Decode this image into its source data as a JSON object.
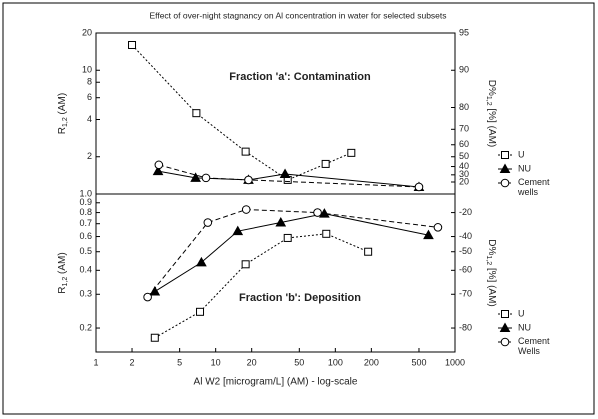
{
  "chart_data": [
    {
      "type": "line",
      "title": "Effect of over-night stagnancy on Al concentration in water for selected subsets",
      "annotation": "Fraction 'a': Contamination",
      "ylabel": {
        "main": "R",
        "sub": "1,2",
        "rest": " (AM)"
      },
      "y2label": {
        "main": "D%",
        "sub": "1,2",
        "rest": " [%] (AM)"
      },
      "xlim": [
        1,
        1000
      ],
      "xlog": true,
      "ylim": [
        1,
        20
      ],
      "ylog": true,
      "yticks": [
        {
          "value": 1,
          "label": "1.0"
        },
        2,
        4,
        6,
        8,
        10,
        20
      ],
      "y2lim": [
        0,
        95
      ],
      "y2ticks": [
        20,
        30,
        40,
        50,
        60,
        70,
        80,
        90,
        95
      ],
      "legend": "right",
      "series": [
        {
          "name": "U",
          "color": "#000000",
          "marker": "square",
          "dash": "dotted",
          "x": [
            2,
            6.9,
            17.8,
            40,
            83,
            136
          ],
          "values": [
            16,
            4.5,
            2.2,
            1.3,
            1.75,
            2.15
          ]
        },
        {
          "name": "NU",
          "color": "#000000",
          "marker": "triangle",
          "dash": "solid",
          "x": [
            3.3,
            6.8,
            18.8,
            38,
            500
          ],
          "values": [
            1.53,
            1.35,
            1.3,
            1.45,
            1.14
          ]
        },
        {
          "name": "Cement wells",
          "color": "#000000",
          "marker": "circle",
          "dash": "dashed",
          "x": [
            3.35,
            8.3,
            18.8,
            500
          ],
          "values": [
            1.72,
            1.35,
            1.3,
            1.14
          ]
        }
      ]
    },
    {
      "type": "line",
      "annotation": "Fraction 'b': Deposition",
      "ylabel": {
        "main": "R",
        "sub": "1,2",
        "rest": " (AM)"
      },
      "y2label": {
        "main": "D%",
        "sub": "1,2",
        "rest": " [%] (AM)"
      },
      "xlabel": "Al W2  [microgram/L] (AM) - log-scale",
      "xlim": [
        1,
        1000
      ],
      "xlog": true,
      "xticks": [
        1,
        2,
        5,
        10,
        20,
        50,
        100,
        200,
        500,
        1000
      ],
      "ylim": [
        0.15,
        1
      ],
      "ylog": true,
      "yticks": [
        0.2,
        0.3,
        0.4,
        0.5,
        0.6,
        0.7,
        0.8,
        0.9
      ],
      "y2lim": [
        -85,
        0
      ],
      "y2ticks": [
        -20,
        -40,
        -50,
        -60,
        -70,
        -80
      ],
      "legend": "right",
      "series": [
        {
          "name": "U",
          "color": "#000000",
          "marker": "square",
          "dash": "dotted",
          "x": [
            3.1,
            7.4,
            17.8,
            40,
            84,
            188
          ],
          "values": [
            0.178,
            0.243,
            0.43,
            0.59,
            0.62,
            0.5
          ]
        },
        {
          "name": "NU",
          "color": "#000000",
          "marker": "triangle",
          "dash": "solid",
          "x": [
            3.1,
            7.6,
            15.3,
            35,
            81,
            600
          ],
          "values": [
            0.31,
            0.44,
            0.64,
            0.71,
            0.79,
            0.61
          ]
        },
        {
          "name": "Cement Wells",
          "color": "#000000",
          "marker": "circle",
          "dash": "dashed",
          "x": [
            2.7,
            8.6,
            18,
            71,
            720
          ],
          "values": [
            0.29,
            0.71,
            0.83,
            0.8,
            0.67
          ]
        }
      ]
    }
  ]
}
